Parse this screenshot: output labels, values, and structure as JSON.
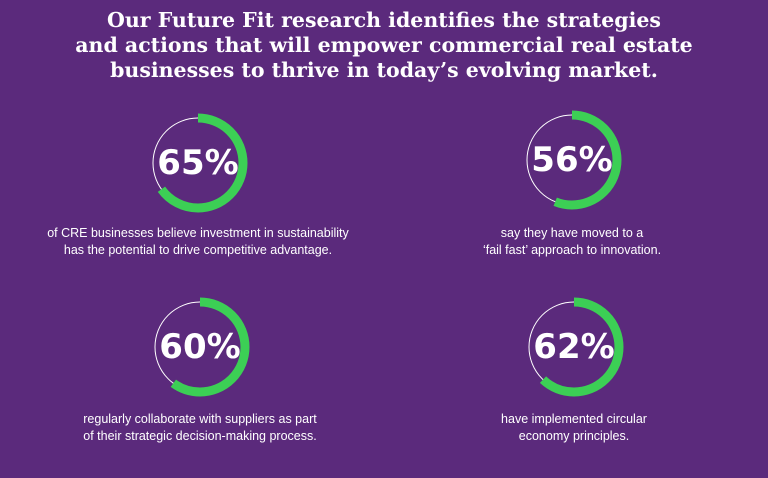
{
  "headline": {
    "lines": [
      "Our Future Fit research identifies the strategies",
      "and actions that will empower commercial real estate",
      "businesses to thrive in today’s evolving market."
    ]
  },
  "colors": {
    "background": "#5b2a7c",
    "accent": "#3ccf55",
    "track": "#ffffff"
  },
  "stats": [
    {
      "value": 65,
      "label": "65%",
      "caption": [
        "of CRE businesses believe investment in sustainability",
        "has the potential to drive competitive advantage."
      ]
    },
    {
      "value": 56,
      "label": "56%",
      "caption": [
        "say they have moved to a",
        "‘fail fast’ approach to innovation."
      ]
    },
    {
      "value": 60,
      "label": "60%",
      "caption": [
        "regularly collaborate with suppliers as part",
        "of their strategic decision-making process."
      ]
    },
    {
      "value": 62,
      "label": "62%",
      "caption": [
        "have implemented circular",
        "economy principles."
      ]
    }
  ]
}
